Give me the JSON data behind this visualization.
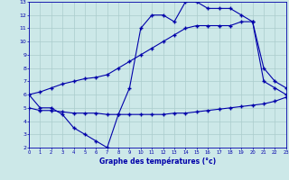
{
  "xlabel": "Graphe des températures (°c)",
  "bg_color": "#cce8e8",
  "line_color": "#0000aa",
  "grid_color": "#aacccc",
  "xmin": 0,
  "xmax": 23,
  "ymin": 2,
  "ymax": 13,
  "hours": [
    0,
    1,
    2,
    3,
    4,
    5,
    6,
    7,
    8,
    9,
    10,
    11,
    12,
    13,
    14,
    15,
    16,
    17,
    18,
    19,
    20,
    21,
    22,
    23
  ],
  "temp_actual": [
    6.0,
    5.0,
    5.0,
    4.5,
    3.5,
    3.0,
    2.5,
    2.0,
    4.5,
    6.5,
    11.0,
    12.0,
    12.0,
    11.5,
    13.0,
    13.0,
    12.5,
    12.5,
    12.5,
    12.0,
    11.5,
    7.0,
    6.5,
    6.0
  ],
  "temp_min": [
    5.0,
    4.8,
    4.8,
    4.7,
    4.6,
    4.6,
    4.6,
    4.5,
    4.5,
    4.5,
    4.5,
    4.5,
    4.5,
    4.6,
    4.6,
    4.7,
    4.8,
    4.9,
    5.0,
    5.1,
    5.2,
    5.3,
    5.5,
    5.8
  ],
  "temp_max": [
    6.0,
    6.2,
    6.5,
    6.8,
    7.0,
    7.2,
    7.3,
    7.5,
    8.0,
    8.5,
    9.0,
    9.5,
    10.0,
    10.5,
    11.0,
    11.2,
    11.2,
    11.2,
    11.2,
    11.5,
    11.5,
    8.0,
    7.0,
    6.5
  ]
}
